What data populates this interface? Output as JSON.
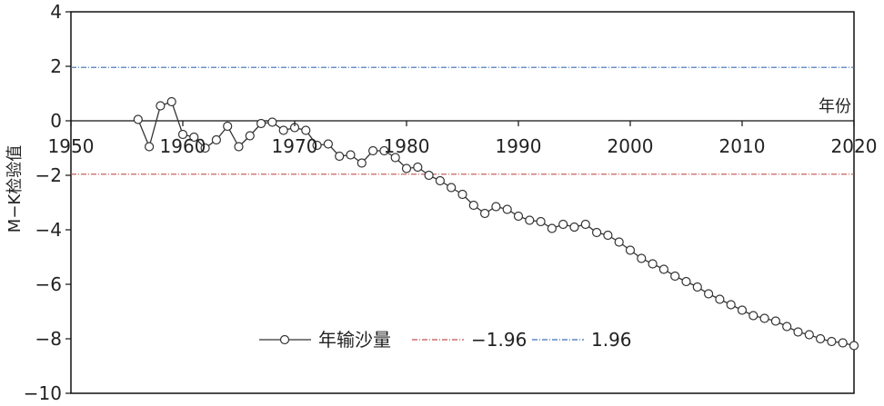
{
  "chart_data": {
    "type": "line",
    "ylabel": "M−K检验值",
    "xlabel": "年份",
    "xlim": [
      1950,
      2020
    ],
    "ylim": [
      -10,
      4
    ],
    "x_ticks": [
      "1950",
      "1960",
      "1970",
      "1980",
      "1990",
      "2000",
      "2010",
      "2020"
    ],
    "y_ticks": [
      "4",
      "2",
      "0",
      "−2",
      "−4",
      "−6",
      "−8",
      "−10"
    ],
    "grid": false,
    "legend_position": "bottom-center",
    "series": [
      {
        "name": "年输沙量",
        "color": "#333333",
        "marker": "open-circle",
        "x": [
          1956,
          1957,
          1958,
          1959,
          1960,
          1961,
          1962,
          1963,
          1964,
          1965,
          1966,
          1967,
          1968,
          1969,
          1970,
          1971,
          1972,
          1973,
          1974,
          1975,
          1976,
          1977,
          1978,
          1979,
          1980,
          1981,
          1982,
          1983,
          1984,
          1985,
          1986,
          1987,
          1988,
          1989,
          1990,
          1991,
          1992,
          1993,
          1994,
          1995,
          1996,
          1997,
          1998,
          1999,
          2000,
          2001,
          2002,
          2003,
          2004,
          2005,
          2006,
          2007,
          2008,
          2009,
          2010,
          2011,
          2012,
          2013,
          2014,
          2015,
          2016,
          2017,
          2018,
          2019,
          2020
        ],
        "values": [
          0.05,
          -0.95,
          0.55,
          0.7,
          -0.5,
          -0.6,
          -1.0,
          -0.7,
          -0.2,
          -0.95,
          -0.55,
          -0.1,
          -0.05,
          -0.35,
          -0.25,
          -0.35,
          -0.9,
          -0.85,
          -1.3,
          -1.25,
          -1.55,
          -1.1,
          -1.1,
          -1.35,
          -1.75,
          -1.7,
          -2.0,
          -2.2,
          -2.45,
          -2.7,
          -3.1,
          -3.4,
          -3.15,
          -3.25,
          -3.5,
          -3.65,
          -3.7,
          -3.95,
          -3.8,
          -3.9,
          -3.8,
          -4.1,
          -4.2,
          -4.45,
          -4.75,
          -5.05,
          -5.25,
          -5.45,
          -5.7,
          -5.9,
          -6.1,
          -6.35,
          -6.55,
          -6.75,
          -6.95,
          -7.15,
          -7.25,
          -7.35,
          -7.55,
          -7.75,
          -7.85,
          -8.0,
          -8.1,
          -8.15,
          -8.25
        ]
      },
      {
        "name": "−1.96",
        "color": "#c0504d",
        "style": "dash-dot",
        "constant": -1.96
      },
      {
        "name": "1.96",
        "color": "#3b6fb6",
        "style": "dash-dot",
        "constant": 1.96
      }
    ]
  }
}
